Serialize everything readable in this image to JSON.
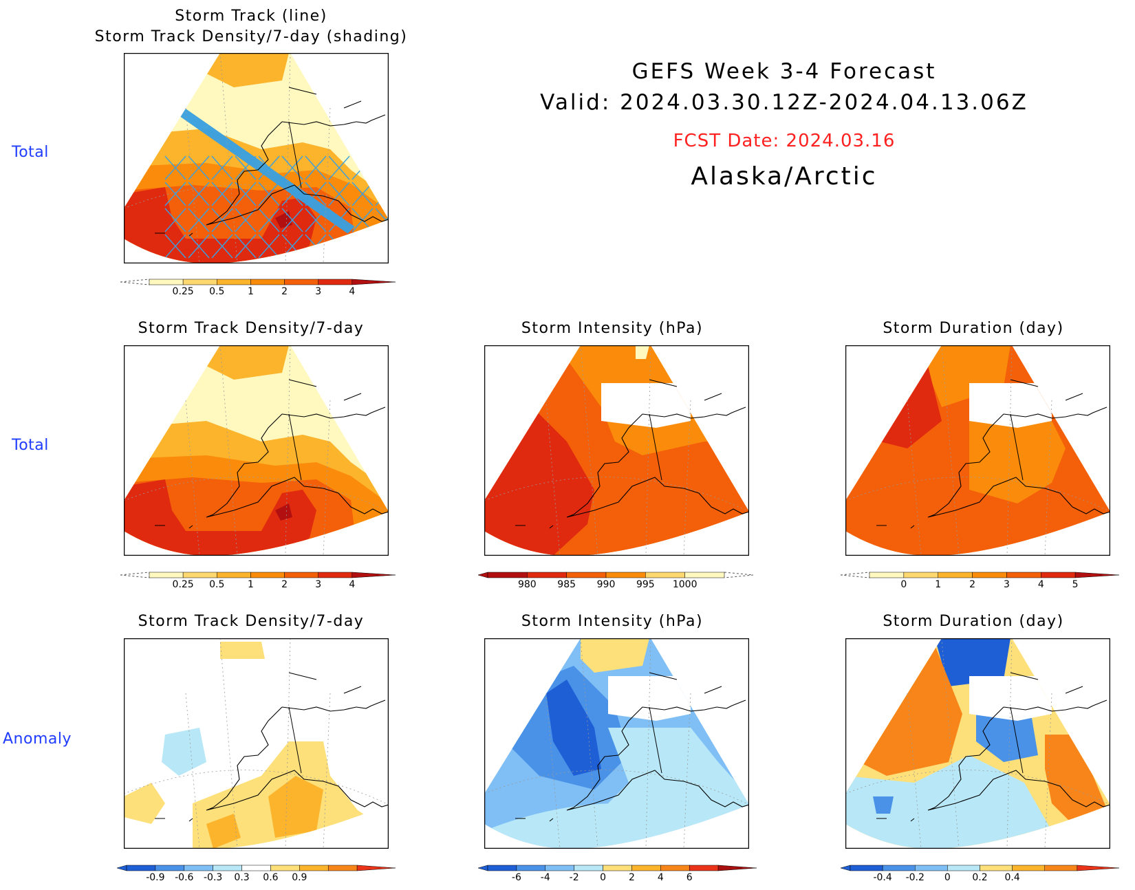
{
  "header": {
    "title_line1": "GEFS Week 3-4 Forecast",
    "title_line2": "Valid: 2024.03.30.12Z-2024.04.13.06Z",
    "fcst_date": "FCST Date: 2024.03.16",
    "region": "Alaska/Arctic"
  },
  "row_labels": {
    "row1": "Total",
    "row2": "Total",
    "row3": "Anomaly"
  },
  "panels": {
    "top": {
      "title_line1": "Storm Track (line)",
      "title_line2": "Storm Track Density/7-day (shading)"
    },
    "density_total": {
      "title": "Storm Track Density/7-day"
    },
    "intensity_total": {
      "title": "Storm Intensity (hPa)"
    },
    "duration_total": {
      "title": "Storm Duration (day)"
    },
    "density_anom": {
      "title": "Storm Track Density/7-day"
    },
    "intensity_anom": {
      "title": "Storm Intensity (hPa)"
    },
    "duration_anom": {
      "title": "Storm Duration (day)"
    }
  },
  "colorbars": {
    "density": {
      "ticks": [
        "0.25",
        "0.5",
        "1",
        "2",
        "3",
        "4"
      ],
      "colors": [
        "#fff8bf",
        "#fdd870",
        "#fdb42d",
        "#fb8c0b",
        "#f45f0a",
        "#e02a10",
        "#b21010"
      ]
    },
    "intensity": {
      "ticks": [
        "980",
        "985",
        "990",
        "995",
        "1000"
      ],
      "colors": [
        "#b21010",
        "#e02a10",
        "#f45f0a",
        "#fb8c0b",
        "#fdd870",
        "#fff8bf"
      ]
    },
    "duration": {
      "ticks": [
        "0",
        "1",
        "2",
        "3",
        "4",
        "5"
      ],
      "colors": [
        "#fff8bf",
        "#fdd870",
        "#fdb42d",
        "#fb8c0b",
        "#f45f0a",
        "#e02a10",
        "#b21010"
      ]
    },
    "density_anom": {
      "ticks": [
        "-0.9",
        "-0.6",
        "-0.3",
        "0.3",
        "0.6",
        "0.9"
      ],
      "colors": [
        "#1f5fd6",
        "#4a92e8",
        "#7fbff5",
        "#b8e8f7",
        "#ffffff",
        "#fde07a",
        "#fdb42d",
        "#f8851a",
        "#e9341a"
      ]
    },
    "intensity_anom": {
      "ticks": [
        "-6",
        "-4",
        "-2",
        "0",
        "2",
        "4",
        "6"
      ],
      "colors": [
        "#1f5fd6",
        "#4a92e8",
        "#7fbff5",
        "#b8e8f7",
        "#fde07a",
        "#fdb42d",
        "#f8851a",
        "#e9341a",
        "#a81010"
      ]
    },
    "duration_anom": {
      "ticks": [
        "-0.4",
        "-0.2",
        "0",
        "0.2",
        "0.4"
      ],
      "colors": [
        "#1f5fd6",
        "#4a92e8",
        "#7fbff5",
        "#b8e8f7",
        "#fde07a",
        "#fdb42d",
        "#f8851a",
        "#e9341a"
      ]
    }
  }
}
